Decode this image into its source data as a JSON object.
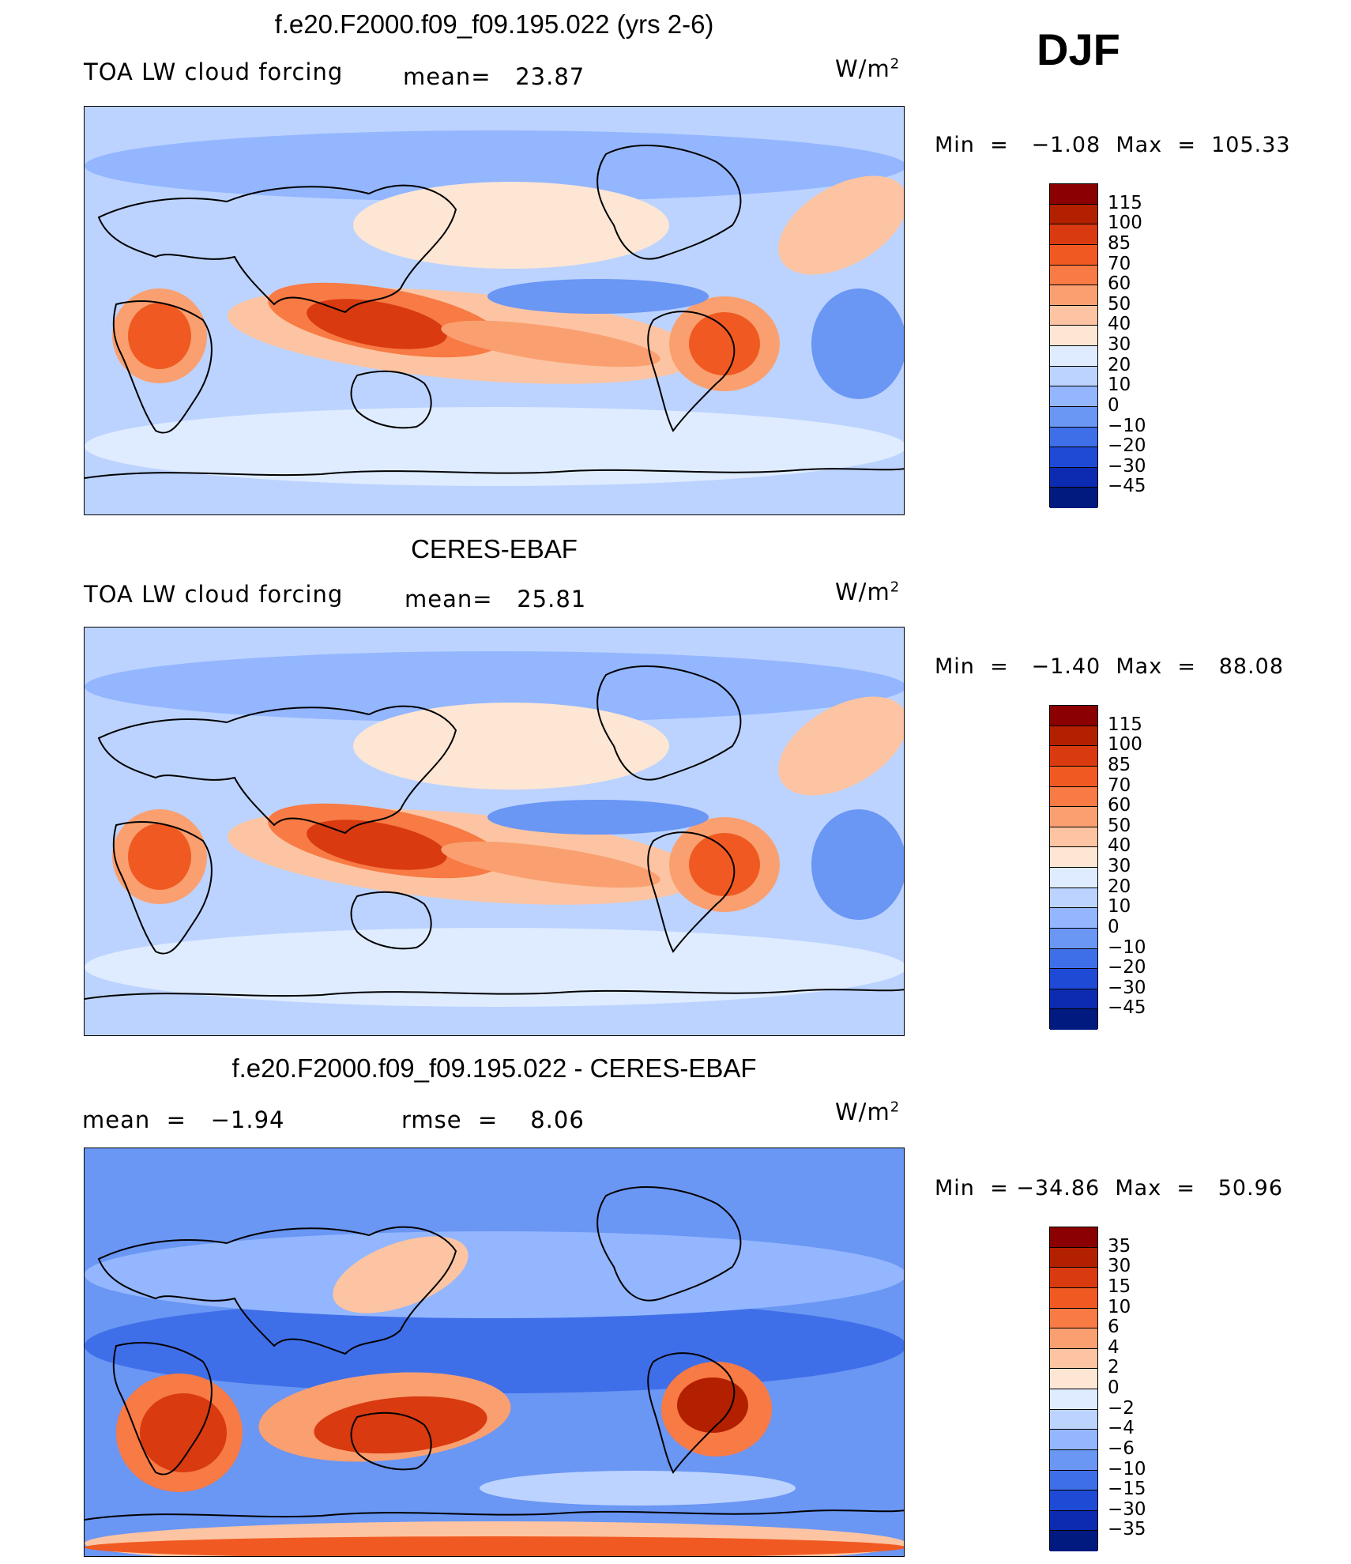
{
  "season": "DJF",
  "panels": [
    {
      "title": "f.e20.F2000.f09_f09.195.022 (yrs 2-6)",
      "left_label": "TOA LW cloud forcing",
      "center_label": "mean=   23.87",
      "units": "W/m",
      "units_sup": "2",
      "min_max": "Min  =   −1.08  Max  =  105.33",
      "colorbar_levels": [
        "115",
        "100",
        "85",
        "70",
        "60",
        "50",
        "40",
        "30",
        "20",
        "10",
        "0",
        "−10",
        "−20",
        "−30",
        "−45"
      ],
      "colorbar_colors": [
        "#8b0000",
        "#b22000",
        "#d93a10",
        "#f05a22",
        "#f87a44",
        "#faa070",
        "#fcc4a2",
        "#fde6d4",
        "#dfecff",
        "#bcd3ff",
        "#93b6ff",
        "#6a96f4",
        "#3f6fe8",
        "#1f4ad6",
        "#0c2bb0",
        "#001a80"
      ]
    },
    {
      "title": "CERES-EBAF",
      "left_label": "TOA LW cloud forcing",
      "center_label": "mean=   25.81",
      "units": "W/m",
      "units_sup": "2",
      "min_max": "Min  =   −1.40  Max  =   88.08",
      "colorbar_levels": [
        "115",
        "100",
        "85",
        "70",
        "60",
        "50",
        "40",
        "30",
        "20",
        "10",
        "0",
        "−10",
        "−20",
        "−30",
        "−45"
      ],
      "colorbar_colors": [
        "#8b0000",
        "#b22000",
        "#d93a10",
        "#f05a22",
        "#f87a44",
        "#faa070",
        "#fcc4a2",
        "#fde6d4",
        "#dfecff",
        "#bcd3ff",
        "#93b6ff",
        "#6a96f4",
        "#3f6fe8",
        "#1f4ad6",
        "#0c2bb0",
        "#001a80"
      ]
    },
    {
      "title": "f.e20.F2000.f09_f09.195.022 - CERES-EBAF",
      "left_label": "mean  =   −1.94",
      "center_label": "rmse  =    8.06",
      "units": "W/m",
      "units_sup": "2",
      "min_max": "Min  = −34.86  Max  =   50.96",
      "colorbar_levels": [
        "35",
        "30",
        "15",
        "10",
        "6",
        "4",
        "2",
        "0",
        "−2",
        "−4",
        "−6",
        "−10",
        "−15",
        "−30",
        "−35"
      ],
      "colorbar_colors": [
        "#8b0000",
        "#b22000",
        "#d93a10",
        "#f05a22",
        "#f87a44",
        "#faa070",
        "#fcc4a2",
        "#fde6d4",
        "#dfecff",
        "#bcd3ff",
        "#93b6ff",
        "#6a96f4",
        "#3f6fe8",
        "#1f4ad6",
        "#0c2bb0",
        "#001a80"
      ]
    }
  ]
}
